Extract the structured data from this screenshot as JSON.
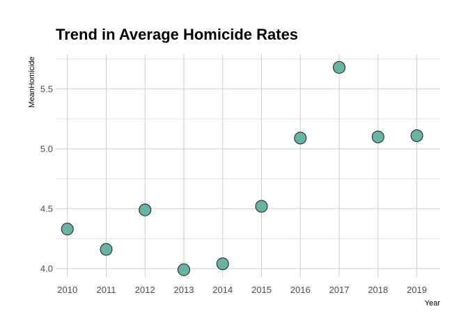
{
  "chart_data": {
    "type": "scatter",
    "title": "Trend in Average Homicide Rates",
    "xlabel": "Year",
    "ylabel": "MeanHomicide",
    "x": [
      2010,
      2011,
      2012,
      2013,
      2014,
      2015,
      2016,
      2017,
      2018,
      2019
    ],
    "y": [
      4.33,
      4.16,
      4.49,
      3.99,
      4.04,
      4.52,
      5.09,
      5.68,
      5.1,
      5.11
    ],
    "xlim": [
      2009.7,
      2019.6
    ],
    "ylim": [
      3.93,
      5.79
    ],
    "x_ticks": [
      "2010",
      "2011",
      "2012",
      "2013",
      "2014",
      "2015",
      "2016",
      "2017",
      "2018",
      "2019"
    ],
    "y_ticks": [
      "4.0",
      "4.5",
      "5.0",
      "5.5"
    ],
    "point_color": "#69b3a2",
    "grid": true
  }
}
